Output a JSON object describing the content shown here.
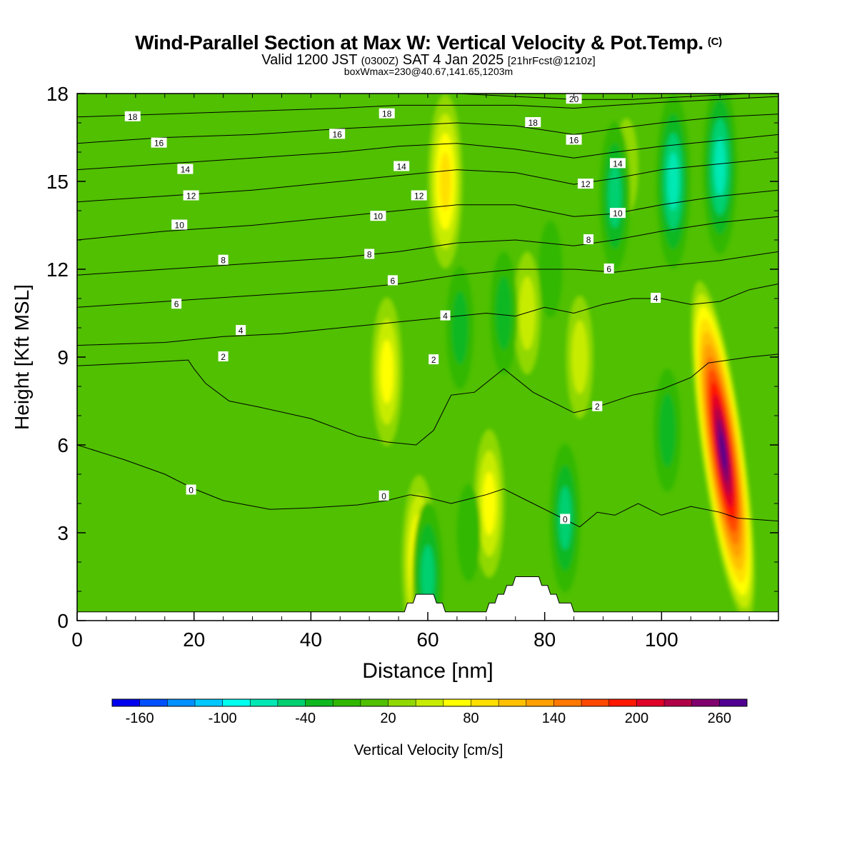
{
  "header": {
    "title": "Wind-Parallel Section at Max W: Vertical Velocity & Pot.Temp.",
    "copyright_tag": "(C)",
    "valid_main": "Valid 1200 JST ",
    "valid_zulu": "(0300Z)",
    "valid_date": " SAT 4 Jan 2025 ",
    "valid_fcst": "[21hrFcst@1210z]",
    "box_info": "boxWmax=230@40.67,141.65,1203m"
  },
  "chart_data": {
    "type": "heatmap",
    "title": "Wind-Parallel Section at Max W: Vertical Velocity & Pot.Temp.",
    "xlabel": "Distance [nm]",
    "ylabel": "Height [Kft MSL]",
    "xlim": [
      0,
      120
    ],
    "ylim": [
      0,
      18
    ],
    "x_ticks": [
      0,
      20,
      40,
      60,
      80,
      100
    ],
    "y_ticks": [
      0,
      3,
      6,
      9,
      12,
      15,
      18
    ],
    "colorbar": {
      "label": "Vertical Velocity [cm/s]",
      "min": -180,
      "max": 280,
      "step": 20,
      "tick_labels": [
        -160,
        -100,
        -40,
        20,
        80,
        140,
        200,
        260
      ],
      "colors": [
        "#0000ee",
        "#0050ff",
        "#0090ff",
        "#00c8ff",
        "#00ffee",
        "#00e8b4",
        "#00d070",
        "#10b820",
        "#30b800",
        "#50c000",
        "#90d800",
        "#c8ec00",
        "#ffff00",
        "#ffe000",
        "#ffc000",
        "#ffa000",
        "#ff7800",
        "#ff4800",
        "#ff1800",
        "#e00028",
        "#b00048",
        "#800070",
        "#500090"
      ]
    },
    "vertical_velocity_features": [
      {
        "x": 110.5,
        "y": 5.8,
        "peak_cm_s": 270
      },
      {
        "x": 63,
        "y": 15,
        "peak_cm_s": 80
      },
      {
        "x": 58.5,
        "y": 2,
        "peak_cm_s": 80
      },
      {
        "x": 70.5,
        "y": 4,
        "peak_cm_s": 70
      },
      {
        "x": 53,
        "y": 8.5,
        "peak_cm_s": 60
      },
      {
        "x": 77,
        "y": 10.5,
        "peak_cm_s": 40
      },
      {
        "x": 86,
        "y": 9,
        "peak_cm_s": 40
      },
      {
        "x": 94,
        "y": 15.5,
        "peak_cm_s": 30
      },
      {
        "x": 20,
        "y": 3.5,
        "peak_cm_s": 10
      },
      {
        "x": 102,
        "y": 15,
        "peak_cm_s": -80
      },
      {
        "x": 83.5,
        "y": 3.5,
        "peak_cm_s": -60
      },
      {
        "x": 92,
        "y": 14.5,
        "peak_cm_s": -60
      },
      {
        "x": 110,
        "y": 15.5,
        "peak_cm_s": -80
      },
      {
        "x": 65.5,
        "y": 10,
        "peak_cm_s": -40
      },
      {
        "x": 73,
        "y": 10.5,
        "peak_cm_s": -40
      },
      {
        "x": 81,
        "y": 12,
        "peak_cm_s": -30
      },
      {
        "x": 101,
        "y": 6.5,
        "peak_cm_s": -50
      },
      {
        "x": 60,
        "y": 1.5,
        "peak_cm_s": -70
      },
      {
        "x": 67,
        "y": 3,
        "peak_cm_s": -20
      }
    ],
    "potential_temperature_contours": [
      {
        "label": "0",
        "points": [
          [
            0,
            6
          ],
          [
            8,
            5.5
          ],
          [
            15,
            5.0
          ],
          [
            20,
            4.5
          ],
          [
            25,
            4.1
          ],
          [
            33,
            3.8
          ],
          [
            40,
            3.85
          ],
          [
            48,
            3.95
          ],
          [
            53,
            4.1
          ],
          [
            57,
            4.3
          ],
          [
            60,
            4.2
          ],
          [
            64,
            4.0
          ],
          [
            70,
            4.3
          ],
          [
            73,
            4.5
          ],
          [
            78,
            4.0
          ],
          [
            83,
            3.5
          ],
          [
            86,
            3.2
          ],
          [
            89,
            3.7
          ],
          [
            92,
            3.6
          ],
          [
            96,
            4.0
          ],
          [
            100,
            3.6
          ],
          [
            105,
            3.9
          ],
          [
            110,
            3.7
          ],
          [
            113,
            3.5
          ],
          [
            120,
            3.4
          ]
        ],
        "label_at": [
          19.5,
          4.45
        ]
      },
      {
        "label": "2",
        "points": [
          [
            0,
            8.7
          ],
          [
            10,
            8.8
          ],
          [
            19,
            8.9
          ],
          [
            20,
            8.6
          ],
          [
            22,
            8.1
          ],
          [
            26,
            7.5
          ],
          [
            31,
            7.3
          ],
          [
            40,
            6.9
          ],
          [
            48,
            6.3
          ],
          [
            53,
            6.1
          ],
          [
            58,
            6.0
          ],
          [
            61,
            6.5
          ],
          [
            64,
            7.7
          ],
          [
            68,
            7.8
          ],
          [
            73,
            8.6
          ],
          [
            78,
            7.8
          ],
          [
            85,
            7.1
          ],
          [
            89,
            7.3
          ],
          [
            95,
            7.7
          ],
          [
            100,
            7.9
          ],
          [
            105,
            8.3
          ],
          [
            108,
            8.8
          ],
          [
            115,
            9.0
          ],
          [
            120,
            9.1
          ]
        ],
        "label_at": [
          61,
          8.9
        ]
      },
      {
        "label": "4",
        "points": [
          [
            0,
            9.4
          ],
          [
            15,
            9.5
          ],
          [
            25,
            9.7
          ],
          [
            35,
            9.8
          ],
          [
            45,
            10.0
          ],
          [
            55,
            10.2
          ],
          [
            60,
            10.3
          ],
          [
            65,
            10.4
          ],
          [
            70,
            10.5
          ],
          [
            75,
            10.4
          ],
          [
            80,
            10.7
          ],
          [
            85,
            10.5
          ],
          [
            90,
            10.8
          ],
          [
            95,
            11.0
          ],
          [
            100,
            11.0
          ],
          [
            105,
            10.8
          ],
          [
            110,
            10.9
          ],
          [
            115,
            11.3
          ],
          [
            120,
            11.5
          ]
        ],
        "label_at": [
          63,
          10.4
        ]
      },
      {
        "label": "6",
        "points": [
          [
            0,
            10.7
          ],
          [
            15,
            10.9
          ],
          [
            30,
            11.1
          ],
          [
            45,
            11.3
          ],
          [
            55,
            11.5
          ],
          [
            65,
            11.8
          ],
          [
            75,
            12.0
          ],
          [
            85,
            12.0
          ],
          [
            92,
            11.9
          ],
          [
            100,
            12.1
          ],
          [
            110,
            12.3
          ],
          [
            120,
            12.6
          ]
        ],
        "label_at": [
          54,
          11.6
        ]
      },
      {
        "label": "8",
        "points": [
          [
            0,
            11.8
          ],
          [
            15,
            12.0
          ],
          [
            30,
            12.2
          ],
          [
            45,
            12.4
          ],
          [
            55,
            12.6
          ],
          [
            65,
            12.9
          ],
          [
            75,
            13.0
          ],
          [
            85,
            12.8
          ],
          [
            92,
            13.0
          ],
          [
            100,
            13.3
          ],
          [
            110,
            13.6
          ],
          [
            120,
            13.8
          ]
        ],
        "label_at": [
          50,
          12.5
        ]
      },
      {
        "label": "10",
        "points": [
          [
            0,
            13.0
          ],
          [
            15,
            13.3
          ],
          [
            30,
            13.5
          ],
          [
            45,
            13.8
          ],
          [
            55,
            14.0
          ],
          [
            65,
            14.2
          ],
          [
            75,
            14.2
          ],
          [
            85,
            13.8
          ],
          [
            92,
            13.9
          ],
          [
            100,
            14.2
          ],
          [
            110,
            14.5
          ],
          [
            120,
            14.7
          ]
        ],
        "label_at": [
          51.5,
          13.8
        ]
      },
      {
        "label": "12",
        "points": [
          [
            0,
            14.3
          ],
          [
            15,
            14.5
          ],
          [
            30,
            14.7
          ],
          [
            45,
            15.0
          ],
          [
            55,
            15.2
          ],
          [
            65,
            15.4
          ],
          [
            75,
            15.3
          ],
          [
            85,
            14.9
          ],
          [
            92,
            15.1
          ],
          [
            100,
            15.4
          ],
          [
            110,
            15.6
          ],
          [
            120,
            15.8
          ]
        ],
        "label_at": [
          58.5,
          14.5
        ]
      },
      {
        "label": "14",
        "points": [
          [
            0,
            15.4
          ],
          [
            15,
            15.6
          ],
          [
            30,
            15.8
          ],
          [
            45,
            16.0
          ],
          [
            55,
            16.2
          ],
          [
            65,
            16.3
          ],
          [
            75,
            16.1
          ],
          [
            85,
            15.8
          ],
          [
            92,
            16.0
          ],
          [
            100,
            16.2
          ],
          [
            110,
            16.4
          ],
          [
            120,
            16.6
          ]
        ],
        "label_at": [
          55.5,
          15.5
        ]
      },
      {
        "label": "16",
        "points": [
          [
            0,
            16.3
          ],
          [
            15,
            16.5
          ],
          [
            30,
            16.6
          ],
          [
            45,
            16.8
          ],
          [
            55,
            16.9
          ],
          [
            65,
            17.0
          ],
          [
            75,
            16.9
          ],
          [
            85,
            16.6
          ],
          [
            92,
            16.8
          ],
          [
            100,
            17.0
          ],
          [
            110,
            17.2
          ],
          [
            120,
            17.3
          ]
        ],
        "label_at": [
          44.5,
          16.6
        ]
      },
      {
        "label": "18",
        "points": [
          [
            0,
            17.2
          ],
          [
            15,
            17.3
          ],
          [
            30,
            17.4
          ],
          [
            45,
            17.5
          ],
          [
            55,
            17.6
          ],
          [
            65,
            17.6
          ],
          [
            75,
            17.6
          ],
          [
            85,
            17.5
          ],
          [
            92,
            17.6
          ],
          [
            100,
            17.7
          ],
          [
            110,
            17.8
          ],
          [
            120,
            17.9
          ]
        ],
        "label_at": [
          53,
          17.3
        ]
      },
      {
        "label": "20",
        "points": [
          [
            55,
            18.0
          ],
          [
            65,
            18.0
          ],
          [
            75,
            17.9
          ],
          [
            85,
            17.8
          ],
          [
            95,
            17.8
          ],
          [
            105,
            17.9
          ],
          [
            115,
            18.0
          ],
          [
            120,
            18.0
          ]
        ],
        "label_at": [
          85,
          17.8
        ]
      }
    ],
    "extra_contour_labels": [
      {
        "label": "18",
        "at": [
          9.5,
          17.2
        ]
      },
      {
        "label": "16",
        "at": [
          14,
          16.3
        ]
      },
      {
        "label": "14",
        "at": [
          18.5,
          15.4
        ]
      },
      {
        "label": "12",
        "at": [
          19.5,
          14.5
        ]
      },
      {
        "label": "10",
        "at": [
          17.5,
          13.5
        ]
      },
      {
        "label": "8",
        "at": [
          25,
          12.3
        ]
      },
      {
        "label": "6",
        "at": [
          17,
          10.8
        ]
      },
      {
        "label": "4",
        "at": [
          28,
          9.9
        ]
      },
      {
        "label": "2",
        "at": [
          25,
          9.0
        ]
      },
      {
        "label": "0",
        "at": [
          52.5,
          4.25
        ]
      },
      {
        "label": "0",
        "at": [
          83.5,
          3.45
        ]
      },
      {
        "label": "2",
        "at": [
          89,
          7.3
        ]
      },
      {
        "label": "4",
        "at": [
          99,
          11.0
        ]
      },
      {
        "label": "6",
        "at": [
          91,
          12.0
        ]
      },
      {
        "label": "8",
        "at": [
          87.5,
          13.0
        ]
      },
      {
        "label": "10",
        "at": [
          92.5,
          13.9
        ]
      },
      {
        "label": "12",
        "at": [
          87,
          14.9
        ]
      },
      {
        "label": "14",
        "at": [
          92.5,
          15.6
        ]
      },
      {
        "label": "16",
        "at": [
          85,
          16.4
        ]
      },
      {
        "label": "18",
        "at": [
          78,
          17.0
        ]
      }
    ],
    "terrain": [
      [
        0,
        0.3
      ],
      [
        56,
        0.3
      ],
      [
        56.5,
        0.6
      ],
      [
        57.5,
        0.6
      ],
      [
        58,
        0.9
      ],
      [
        61,
        0.9
      ],
      [
        61.5,
        0.6
      ],
      [
        62.5,
        0.6
      ],
      [
        63,
        0.3
      ],
      [
        70,
        0.3
      ],
      [
        70.5,
        0.6
      ],
      [
        71.5,
        0.6
      ],
      [
        72,
        0.9
      ],
      [
        73,
        0.9
      ],
      [
        73.5,
        1.2
      ],
      [
        74.5,
        1.2
      ],
      [
        75,
        1.5
      ],
      [
        79,
        1.5
      ],
      [
        79.5,
        1.2
      ],
      [
        80.5,
        1.2
      ],
      [
        81,
        0.9
      ],
      [
        82,
        0.9
      ],
      [
        82.5,
        0.6
      ],
      [
        84.5,
        0.6
      ],
      [
        85,
        0.3
      ],
      [
        120,
        0.3
      ]
    ]
  }
}
